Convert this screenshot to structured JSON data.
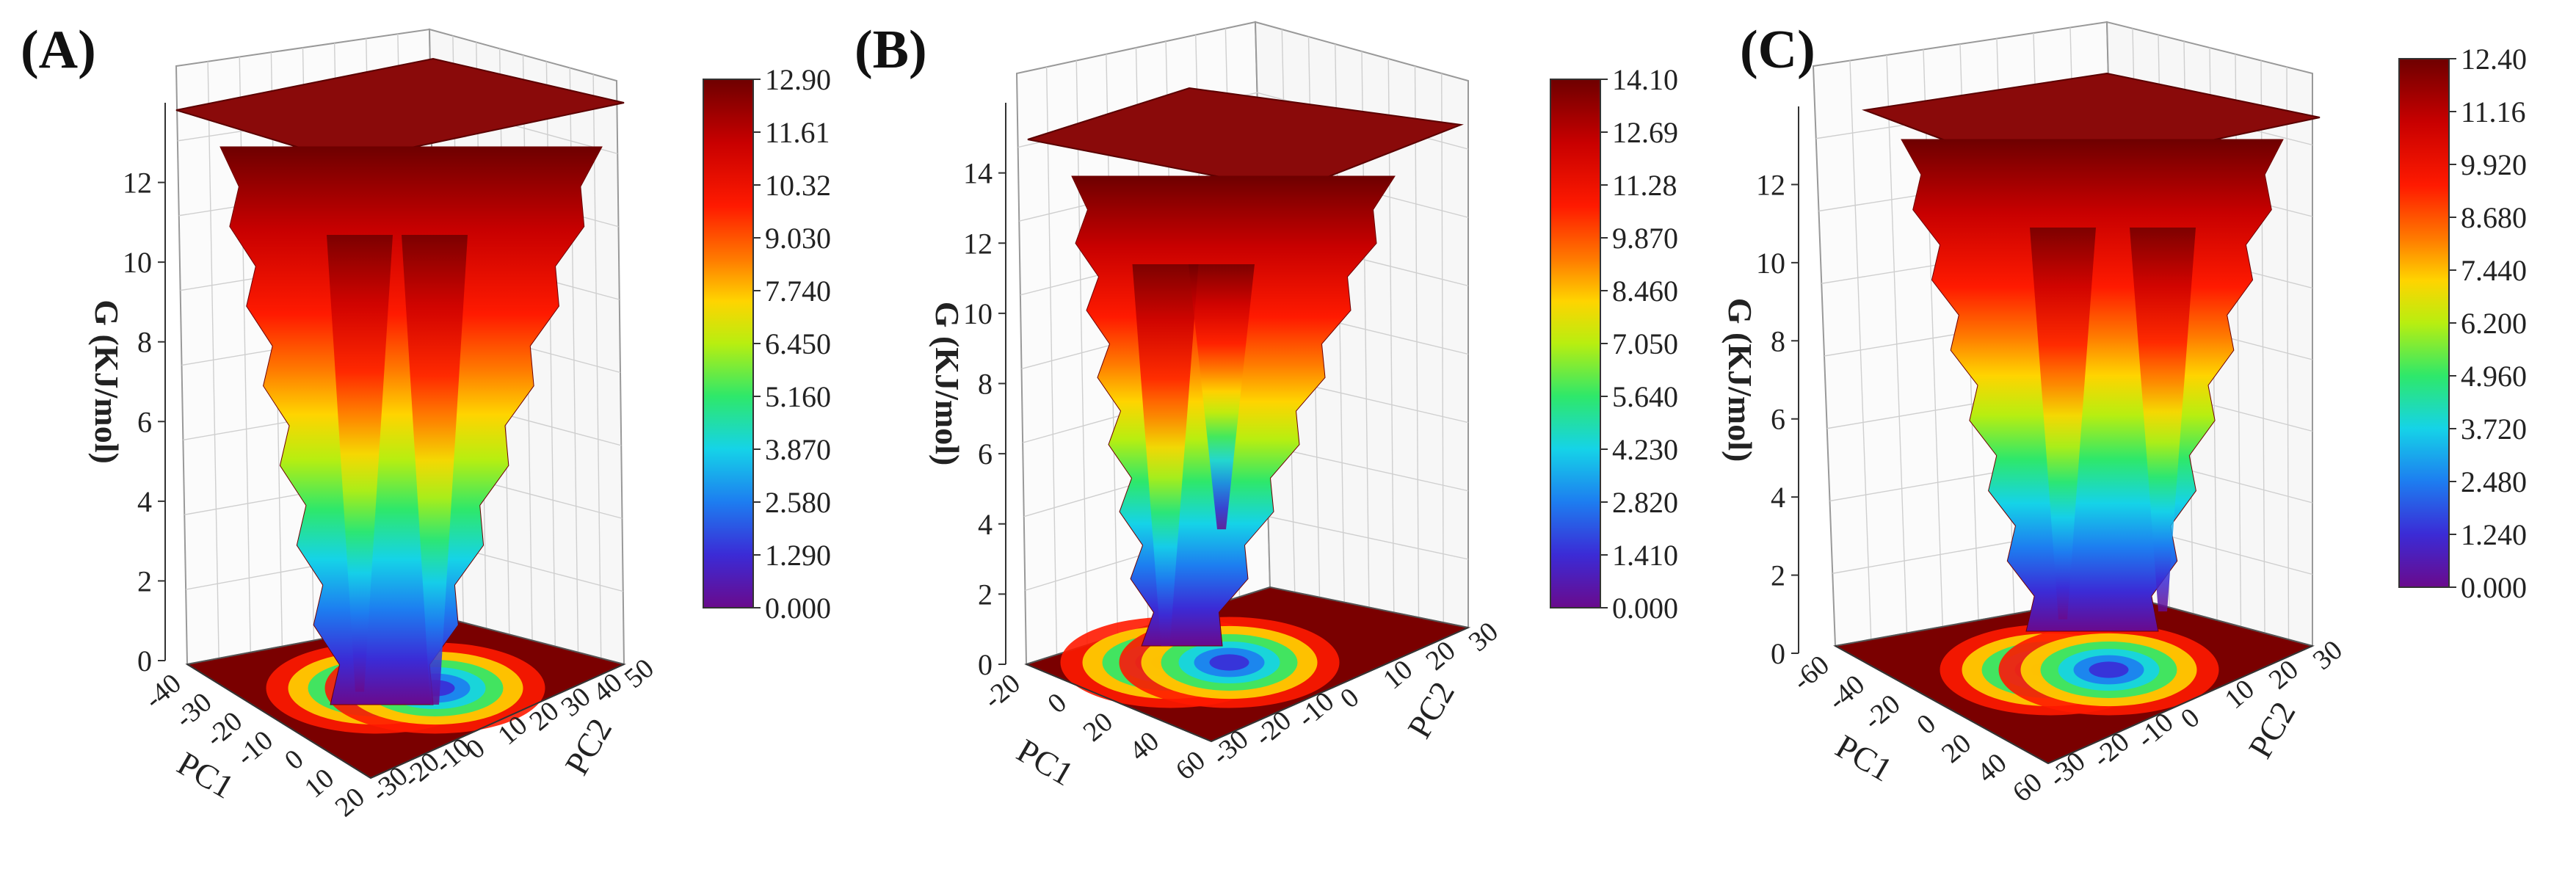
{
  "chart_data": [
    {
      "type": "surface",
      "panel_label": "(A)",
      "zlabel": "G (KJ/mol)",
      "xlabel": "PC1",
      "ylabel": "PC2",
      "z_ticks": [
        "0",
        "2",
        "4",
        "6",
        "8",
        "10",
        "12"
      ],
      "x_ticks": [
        "-40",
        "-30",
        "-20",
        "-10",
        "0",
        "10",
        "20"
      ],
      "y_ticks": [
        "-30",
        "-20",
        "-10",
        "0",
        "10",
        "20",
        "30",
        "40",
        "50"
      ],
      "zlim": [
        0,
        12.9
      ],
      "colorbar": {
        "min": 0,
        "max": 12.9,
        "ticks": [
          "12.90",
          "11.61",
          "10.32",
          "9.030",
          "7.740",
          "6.450",
          "5.160",
          "3.870",
          "2.580",
          "1.290",
          "0.000"
        ]
      },
      "energy_wells": [
        {
          "pc1": -5,
          "pc2": 0,
          "g_min": 0.3
        },
        {
          "pc1": 5,
          "pc2": 5,
          "g_min": 0.0
        }
      ],
      "plateau_g": 12.9
    },
    {
      "type": "surface",
      "panel_label": "(B)",
      "zlabel": "G (KJ/mol)",
      "xlabel": "PC1",
      "ylabel": "PC2",
      "z_ticks": [
        "0",
        "2",
        "4",
        "6",
        "8",
        "10",
        "12",
        "14"
      ],
      "x_ticks": [
        "-20",
        "0",
        "20",
        "40",
        "60"
      ],
      "y_ticks": [
        "-30",
        "-20",
        "-10",
        "0",
        "10",
        "20",
        "30"
      ],
      "zlim": [
        0,
        14.1
      ],
      "colorbar": {
        "min": 0,
        "max": 14.1,
        "ticks": [
          "14.10",
          "12.69",
          "11.28",
          "9.870",
          "8.460",
          "7.050",
          "5.640",
          "4.230",
          "2.820",
          "1.410",
          "0.000"
        ]
      },
      "energy_wells": [
        {
          "pc1": -10,
          "pc2": 10,
          "g_min": 0.0
        },
        {
          "pc1": 10,
          "pc2": 15,
          "g_min": 3.5
        }
      ],
      "plateau_g": 14.1
    },
    {
      "type": "surface",
      "panel_label": "(C)",
      "zlabel": "G (KJ/mol)",
      "xlabel": "PC1",
      "ylabel": "PC2",
      "z_ticks": [
        "0",
        "2",
        "4",
        "6",
        "8",
        "10",
        "12"
      ],
      "x_ticks": [
        "-60",
        "-40",
        "-20",
        "0",
        "20",
        "40",
        "60"
      ],
      "y_ticks": [
        "-30",
        "-20",
        "-10",
        "0",
        "10",
        "20",
        "30"
      ],
      "zlim": [
        0,
        12.4
      ],
      "colorbar": {
        "min": 0,
        "max": 12.4,
        "ticks": [
          "12.40",
          "11.16",
          "9.920",
          "8.680",
          "7.440",
          "6.200",
          "4.960",
          "3.720",
          "2.480",
          "1.240",
          "0.000"
        ]
      },
      "energy_wells": [
        {
          "pc1": -10,
          "pc2": 5,
          "g_min": 0.3
        },
        {
          "pc1": 10,
          "pc2": 5,
          "g_min": 0.5
        }
      ],
      "plateau_g": 12.4
    }
  ],
  "colormap": [
    "#6a0a8c",
    "#3b2bd6",
    "#1d7df0",
    "#15d3e8",
    "#2ee86a",
    "#b8ee10",
    "#ffd400",
    "#ff7a00",
    "#ff1a00",
    "#c80000",
    "#6e0000"
  ]
}
